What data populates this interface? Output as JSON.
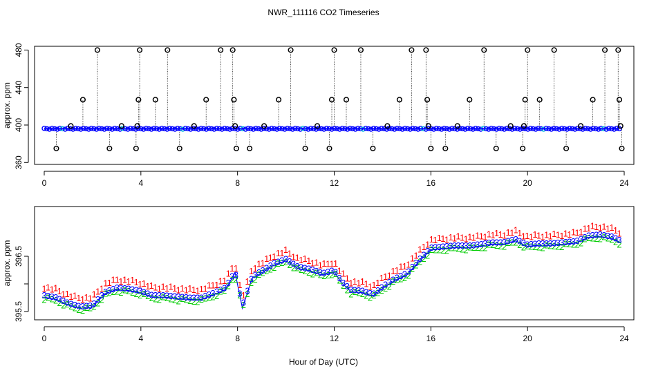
{
  "chart_data": {
    "title": "NWR_111116  CO2 Timeseries",
    "xlabel": "Hour of Day (UTC)",
    "charts": [
      {
        "type": "scatter",
        "ylabel": "approx. ppm",
        "xlim": [
          -0.4,
          24.4
        ],
        "ylim": [
          358,
          484
        ],
        "xticks": [
          0,
          4,
          8,
          12,
          16,
          20,
          24
        ],
        "yticks": [
          360,
          400,
          440,
          480
        ],
        "baseline": 396,
        "series": [
          {
            "name": "main trace (blue)",
            "color": "#0000ff",
            "x_range": [
              0,
              23.8
            ],
            "approx_value": 396
          },
          {
            "name": "spikes (black circles)",
            "color": "#000000",
            "points": [
              {
                "x": 0.5,
                "y": 375
              },
              {
                "x": 1.1,
                "y": 399
              },
              {
                "x": 1.6,
                "y": 427
              },
              {
                "x": 2.2,
                "y": 480
              },
              {
                "x": 2.7,
                "y": 375
              },
              {
                "x": 3.2,
                "y": 399
              },
              {
                "x": 3.8,
                "y": 375
              },
              {
                "x": 3.85,
                "y": 399
              },
              {
                "x": 3.9,
                "y": 427
              },
              {
                "x": 3.95,
                "y": 480
              },
              {
                "x": 4.6,
                "y": 427
              },
              {
                "x": 5.1,
                "y": 480
              },
              {
                "x": 5.6,
                "y": 375
              },
              {
                "x": 6.2,
                "y": 399
              },
              {
                "x": 6.7,
                "y": 427
              },
              {
                "x": 7.3,
                "y": 480
              },
              {
                "x": 7.8,
                "y": 480
              },
              {
                "x": 7.85,
                "y": 427
              },
              {
                "x": 7.9,
                "y": 399
              },
              {
                "x": 7.95,
                "y": 375
              },
              {
                "x": 8.5,
                "y": 375
              },
              {
                "x": 9.1,
                "y": 399
              },
              {
                "x": 9.7,
                "y": 427
              },
              {
                "x": 10.2,
                "y": 480
              },
              {
                "x": 10.8,
                "y": 375
              },
              {
                "x": 11.3,
                "y": 399
              },
              {
                "x": 11.8,
                "y": 375
              },
              {
                "x": 11.9,
                "y": 427
              },
              {
                "x": 12.0,
                "y": 480
              },
              {
                "x": 12.5,
                "y": 427
              },
              {
                "x": 13.1,
                "y": 480
              },
              {
                "x": 13.6,
                "y": 375
              },
              {
                "x": 14.2,
                "y": 399
              },
              {
                "x": 14.7,
                "y": 427
              },
              {
                "x": 15.2,
                "y": 480
              },
              {
                "x": 15.8,
                "y": 480
              },
              {
                "x": 15.85,
                "y": 427
              },
              {
                "x": 15.9,
                "y": 399
              },
              {
                "x": 16.0,
                "y": 375
              },
              {
                "x": 16.6,
                "y": 375
              },
              {
                "x": 17.1,
                "y": 399
              },
              {
                "x": 17.6,
                "y": 427
              },
              {
                "x": 18.2,
                "y": 480
              },
              {
                "x": 18.7,
                "y": 375
              },
              {
                "x": 19.3,
                "y": 399
              },
              {
                "x": 19.8,
                "y": 375
              },
              {
                "x": 19.85,
                "y": 399
              },
              {
                "x": 19.9,
                "y": 427
              },
              {
                "x": 20.0,
                "y": 480
              },
              {
                "x": 20.5,
                "y": 427
              },
              {
                "x": 21.1,
                "y": 480
              },
              {
                "x": 21.6,
                "y": 375
              },
              {
                "x": 22.2,
                "y": 399
              },
              {
                "x": 22.7,
                "y": 427
              },
              {
                "x": 23.2,
                "y": 480
              },
              {
                "x": 23.75,
                "y": 480
              },
              {
                "x": 23.8,
                "y": 427
              },
              {
                "x": 23.85,
                "y": 399
              },
              {
                "x": 23.9,
                "y": 375
              }
            ]
          }
        ]
      },
      {
        "type": "line",
        "ylabel": "approx. ppm",
        "xlim": [
          -0.4,
          24.4
        ],
        "ylim": [
          395.35,
          397.4
        ],
        "xticks": [
          0,
          4,
          8,
          12,
          16,
          20,
          24
        ],
        "yticks": [
          395.5,
          396.0,
          396.5
        ],
        "ytick_labels": [
          "395.5",
          "",
          "396.5"
        ],
        "series": [
          {
            "name": "1",
            "color": "#ff0000",
            "offset": 0.12
          },
          {
            "name": "2",
            "color": "#00cc00",
            "offset": -0.08
          },
          {
            "name": "3",
            "color": "#0000ff",
            "offset": 0.0,
            "points": [
              {
                "x": 0,
                "y": 395.76
              },
              {
                "x": 0.5,
                "y": 395.72
              },
              {
                "x": 1.0,
                "y": 395.62
              },
              {
                "x": 1.5,
                "y": 395.56
              },
              {
                "x": 2.0,
                "y": 395.58
              },
              {
                "x": 2.5,
                "y": 395.82
              },
              {
                "x": 3.0,
                "y": 395.9
              },
              {
                "x": 3.5,
                "y": 395.88
              },
              {
                "x": 4.0,
                "y": 395.84
              },
              {
                "x": 4.5,
                "y": 395.76
              },
              {
                "x": 5.0,
                "y": 395.76
              },
              {
                "x": 5.5,
                "y": 395.74
              },
              {
                "x": 6.0,
                "y": 395.72
              },
              {
                "x": 6.5,
                "y": 395.72
              },
              {
                "x": 7.0,
                "y": 395.8
              },
              {
                "x": 7.5,
                "y": 395.9
              },
              {
                "x": 7.9,
                "y": 396.2
              },
              {
                "x": 8.2,
                "y": 395.56
              },
              {
                "x": 8.6,
                "y": 396.1
              },
              {
                "x": 9.0,
                "y": 396.2
              },
              {
                "x": 9.5,
                "y": 396.34
              },
              {
                "x": 10.0,
                "y": 396.42
              },
              {
                "x": 10.5,
                "y": 396.28
              },
              {
                "x": 11.0,
                "y": 396.24
              },
              {
                "x": 11.5,
                "y": 396.16
              },
              {
                "x": 12.0,
                "y": 396.22
              },
              {
                "x": 12.3,
                "y": 396.02
              },
              {
                "x": 12.7,
                "y": 395.86
              },
              {
                "x": 13.2,
                "y": 395.84
              },
              {
                "x": 13.6,
                "y": 395.78
              },
              {
                "x": 14.0,
                "y": 395.92
              },
              {
                "x": 14.5,
                "y": 396.06
              },
              {
                "x": 15.0,
                "y": 396.16
              },
              {
                "x": 15.5,
                "y": 396.4
              },
              {
                "x": 16.0,
                "y": 396.62
              },
              {
                "x": 16.5,
                "y": 396.64
              },
              {
                "x": 17.0,
                "y": 396.66
              },
              {
                "x": 17.5,
                "y": 396.66
              },
              {
                "x": 18.0,
                "y": 396.68
              },
              {
                "x": 18.5,
                "y": 396.72
              },
              {
                "x": 19.0,
                "y": 396.72
              },
              {
                "x": 19.5,
                "y": 396.78
              },
              {
                "x": 20.0,
                "y": 396.68
              },
              {
                "x": 20.5,
                "y": 396.7
              },
              {
                "x": 21.0,
                "y": 396.7
              },
              {
                "x": 21.5,
                "y": 396.72
              },
              {
                "x": 22.0,
                "y": 396.74
              },
              {
                "x": 22.5,
                "y": 396.84
              },
              {
                "x": 23.0,
                "y": 396.86
              },
              {
                "x": 23.5,
                "y": 396.82
              },
              {
                "x": 23.8,
                "y": 396.76
              }
            ]
          }
        ]
      }
    ]
  }
}
